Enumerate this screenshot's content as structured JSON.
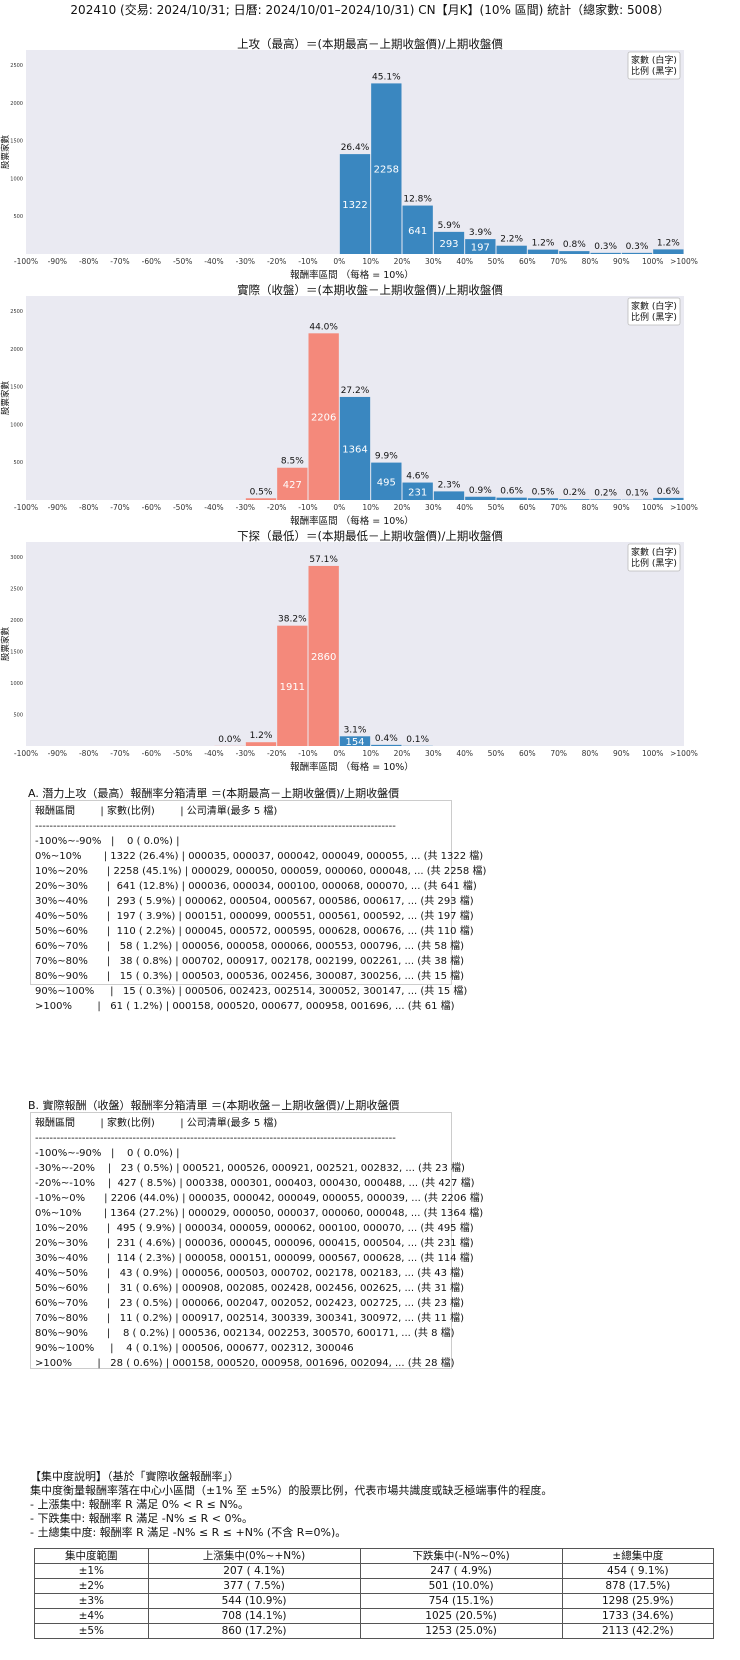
{
  "header": "202410 (交易: 2024/10/31; 日曆: 2024/10/01–2024/10/31) CN【月K】(10% 區間) 統計（總家數: 5008）",
  "charts": [
    {
      "title": "上攻（最高）＝(本期最高－上期收盤價)/上期收盤價",
      "ylabel": "股票家數",
      "xlabel": "報酬率區間 （每格 = 10%）",
      "legend": [
        "家數 (白字)",
        "比例 (黑字)"
      ]
    },
    {
      "title": "實際（收盤）＝(本期收盤－上期收盤價)/上期收盤價",
      "ylabel": "股票家數",
      "xlabel": "報酬率區間 （每格 = 10%）",
      "legend": [
        "家數 (白字)",
        "比例 (黑字)"
      ]
    },
    {
      "title": "下探（最低）＝(本期最低－上期收盤價)/上期收盤價",
      "ylabel": "股票家數",
      "xlabel": "報酬率區間 （每格 = 10%）",
      "legend": [
        "家數 (白字)",
        "比例 (黑字)"
      ]
    }
  ],
  "chart_data": [
    {
      "type": "bar",
      "categories": [
        "-100%",
        "-90%",
        "-80%",
        "-70%",
        "-60%",
        "-50%",
        "-40%",
        "-30%",
        "-20%",
        "-10%",
        "0%",
        "10%",
        "20%",
        "30%",
        "40%",
        "50%",
        "60%",
        "70%",
        "80%",
        "90%",
        "100%",
        ">100%"
      ],
      "ylim": [
        0,
        2500
      ],
      "yticks": [
        500,
        1000,
        1500,
        2000,
        2500
      ],
      "bars": [
        {
          "bin": 10,
          "count": 1322,
          "pct": "26.4%",
          "color": "#3a87c0"
        },
        {
          "bin": 11,
          "count": 2258,
          "pct": "45.1%",
          "color": "#3a87c0"
        },
        {
          "bin": 12,
          "count": 641,
          "pct": "12.8%",
          "color": "#3a87c0"
        },
        {
          "bin": 13,
          "count": 293,
          "pct": "5.9%",
          "color": "#3a87c0"
        },
        {
          "bin": 14,
          "count": 197,
          "pct": "3.9%",
          "color": "#3a87c0"
        },
        {
          "bin": 15,
          "count": 110,
          "pct": "2.2%",
          "color": "#3a87c0"
        },
        {
          "bin": 16,
          "count": 58,
          "pct": "1.2%",
          "color": "#3a87c0"
        },
        {
          "bin": 17,
          "count": 38,
          "pct": "0.8%",
          "color": "#3a87c0"
        },
        {
          "bin": 18,
          "count": 15,
          "pct": "0.3%",
          "color": "#3a87c0"
        },
        {
          "bin": 19,
          "count": 15,
          "pct": "0.3%",
          "color": "#3a87c0"
        },
        {
          "bin": 20,
          "count": 61,
          "pct": "1.2%",
          "color": "#3a87c0"
        }
      ]
    },
    {
      "type": "bar",
      "categories": [
        "-100%",
        "-90%",
        "-80%",
        "-70%",
        "-60%",
        "-50%",
        "-40%",
        "-30%",
        "-20%",
        "-10%",
        "0%",
        "10%",
        "20%",
        "30%",
        "40%",
        "50%",
        "60%",
        "70%",
        "80%",
        "90%",
        "100%",
        ">100%"
      ],
      "ylim": [
        0,
        2500
      ],
      "yticks": [
        500,
        1000,
        1500,
        2000,
        2500
      ],
      "bars": [
        {
          "bin": 7,
          "count": 23,
          "pct": "0.5%",
          "color": "#f4897b"
        },
        {
          "bin": 8,
          "count": 427,
          "pct": "8.5%",
          "color": "#f4897b"
        },
        {
          "bin": 9,
          "count": 2206,
          "pct": "44.0%",
          "color": "#f4897b"
        },
        {
          "bin": 10,
          "count": 1364,
          "pct": "27.2%",
          "color": "#3a87c0"
        },
        {
          "bin": 11,
          "count": 495,
          "pct": "9.9%",
          "color": "#3a87c0"
        },
        {
          "bin": 12,
          "count": 231,
          "pct": "4.6%",
          "color": "#3a87c0"
        },
        {
          "bin": 13,
          "count": 114,
          "pct": "2.3%",
          "color": "#3a87c0"
        },
        {
          "bin": 14,
          "count": 43,
          "pct": "0.9%",
          "color": "#3a87c0"
        },
        {
          "bin": 15,
          "count": 31,
          "pct": "0.6%",
          "color": "#3a87c0"
        },
        {
          "bin": 16,
          "count": 23,
          "pct": "0.5%",
          "color": "#3a87c0"
        },
        {
          "bin": 17,
          "count": 11,
          "pct": "0.2%",
          "color": "#3a87c0"
        },
        {
          "bin": 18,
          "count": 8,
          "pct": "0.2%",
          "color": "#3a87c0"
        },
        {
          "bin": 19,
          "count": 4,
          "pct": "0.1%",
          "color": "#3a87c0"
        },
        {
          "bin": 20,
          "count": 28,
          "pct": "0.6%",
          "color": "#3a87c0"
        }
      ]
    },
    {
      "type": "bar",
      "categories": [
        "-100%",
        "-90%",
        "-80%",
        "-70%",
        "-60%",
        "-50%",
        "-40%",
        "-30%",
        "-20%",
        "-10%",
        "0%",
        "10%",
        "20%",
        "30%",
        "40%",
        "50%",
        "60%",
        "70%",
        "80%",
        "90%",
        "100%",
        ">100%"
      ],
      "ylim": [
        0,
        3000
      ],
      "yticks": [
        500,
        1000,
        1500,
        2000,
        2500,
        3000
      ],
      "bars": [
        {
          "bin": 6,
          "count": 2,
          "pct": "0.0%",
          "color": "#f4897b"
        },
        {
          "bin": 7,
          "count": 60,
          "pct": "1.2%",
          "color": "#f4897b"
        },
        {
          "bin": 8,
          "count": 1911,
          "pct": "38.2%",
          "color": "#f4897b"
        },
        {
          "bin": 9,
          "count": 2860,
          "pct": "57.1%",
          "color": "#f4897b"
        },
        {
          "bin": 10,
          "count": 154,
          "pct": "3.1%",
          "color": "#3a87c0"
        },
        {
          "bin": 11,
          "count": 18,
          "pct": "0.4%",
          "color": "#3a87c0"
        },
        {
          "bin": 12,
          "count": 3,
          "pct": "0.1%",
          "color": "#3a87c0"
        }
      ]
    }
  ],
  "table_a": {
    "title": "A. 潛力上攻（最高）報酬率分箱清單 ＝(本期最高－上期收盤價)/上期收盤價",
    "header": "報酬區間        | 家數(比例)        | 公司清單(最多 5 檔)",
    "divider": "----------------------------------------------------------------------------------------------------",
    "rows": [
      "-100%~-90%   |    0 ( 0.0%) |",
      "0%~10%       | 1322 (26.4%) | 000035, 000037, 000042, 000049, 000055, ... (共 1322 檔)",
      "10%~20%      | 2258 (45.1%) | 000029, 000050, 000059, 000060, 000048, ... (共 2258 檔)",
      "20%~30%      |  641 (12.8%) | 000036, 000034, 000100, 000068, 000070, ... (共 641 檔)",
      "30%~40%      |  293 ( 5.9%) | 000062, 000504, 000567, 000586, 000617, ... (共 293 檔)",
      "40%~50%      |  197 ( 3.9%) | 000151, 000099, 000551, 000561, 000592, ... (共 197 檔)",
      "50%~60%      |  110 ( 2.2%) | 000045, 000572, 000595, 000628, 000676, ... (共 110 檔)",
      "60%~70%      |   58 ( 1.2%) | 000056, 000058, 000066, 000553, 000796, ... (共 58 檔)",
      "70%~80%      |   38 ( 0.8%) | 000702, 000917, 002178, 002199, 002261, ... (共 38 檔)",
      "80%~90%      |   15 ( 0.3%) | 000503, 000536, 002456, 300087, 300256, ... (共 15 檔)",
      "90%~100%     |   15 ( 0.3%) | 000506, 002423, 002514, 300052, 300147, ... (共 15 檔)",
      ">100%        |   61 ( 1.2%) | 000158, 000520, 000677, 000958, 001696, ... (共 61 檔)"
    ]
  },
  "table_b": {
    "title": "B. 實際報酬（收盤）報酬率分箱清單 ＝(本期收盤－上期收盤價)/上期收盤價",
    "header": "報酬區間        | 家數(比例)        | 公司清單(最多 5 檔)",
    "divider": "----------------------------------------------------------------------------------------------------",
    "rows": [
      "-100%~-90%   |    0 ( 0.0%) |",
      "-30%~-20%    |   23 ( 0.5%) | 000521, 000526, 000921, 002521, 002832, ... (共 23 檔)",
      "-20%~-10%    |  427 ( 8.5%) | 000338, 000301, 000403, 000430, 000488, ... (共 427 檔)",
      "-10%~0%      | 2206 (44.0%) | 000035, 000042, 000049, 000055, 000039, ... (共 2206 檔)",
      "0%~10%       | 1364 (27.2%) | 000029, 000050, 000037, 000060, 000048, ... (共 1364 檔)",
      "10%~20%      |  495 ( 9.9%) | 000034, 000059, 000062, 000100, 000070, ... (共 495 檔)",
      "20%~30%      |  231 ( 4.6%) | 000036, 000045, 000096, 000415, 000504, ... (共 231 檔)",
      "30%~40%      |  114 ( 2.3%) | 000058, 000151, 000099, 000567, 000628, ... (共 114 檔)",
      "40%~50%      |   43 ( 0.9%) | 000056, 000503, 000702, 002178, 002183, ... (共 43 檔)",
      "50%~60%      |   31 ( 0.6%) | 000908, 002085, 002428, 002456, 002625, ... (共 31 檔)",
      "60%~70%      |   23 ( 0.5%) | 000066, 002047, 002052, 002423, 002725, ... (共 23 檔)",
      "70%~80%      |   11 ( 0.2%) | 000917, 002514, 300339, 300341, 300972, ... (共 11 檔)",
      "80%~90%      |    8 ( 0.2%) | 000536, 002134, 002253, 300570, 600171, ... (共 8 檔)",
      "90%~100%     |    4 ( 0.1%) | 000506, 000677, 002312, 300046",
      ">100%        |   28 ( 0.6%) | 000158, 000520, 000958, 001696, 002094, ... (共 28 檔)"
    ]
  },
  "concentration": {
    "lines": [
      "【集中度說明】（基於「實際收盤報酬率」）",
      "集中度衡量報酬率落在中心小區間（±1% 至 ±5%）的股票比例，代表市場共識度或缺乏極端事件的程度。",
      " - 上漲集中: 報酬率 R 滿足 0% < R ≤ N%。",
      " - 下跌集中: 報酬率 R 滿足 -N% ≤ R < 0%。",
      " - 土總集中度: 報酬率 R 滿足 -N% ≤ R ≤ +N% (不含 R=0%)。"
    ],
    "table": {
      "headers": [
        "集中度範圍",
        "上漲集中(0%~+N%)",
        "下跌集中(-N%~0%)",
        "±總集中度"
      ],
      "rows": [
        [
          "±1%",
          "207 ( 4.1%)",
          "247 ( 4.9%)",
          "454 ( 9.1%)"
        ],
        [
          "±2%",
          "377 ( 7.5%)",
          "501 (10.0%)",
          "878 (17.5%)"
        ],
        [
          "±3%",
          "544 (10.9%)",
          "754 (15.1%)",
          "1298 (25.9%)"
        ],
        [
          "±4%",
          "708 (14.1%)",
          "1025 (20.5%)",
          "1733 (34.6%)"
        ],
        [
          "±5%",
          "860 (17.2%)",
          "1253 (25.0%)",
          "2113 (42.2%)"
        ]
      ]
    }
  }
}
